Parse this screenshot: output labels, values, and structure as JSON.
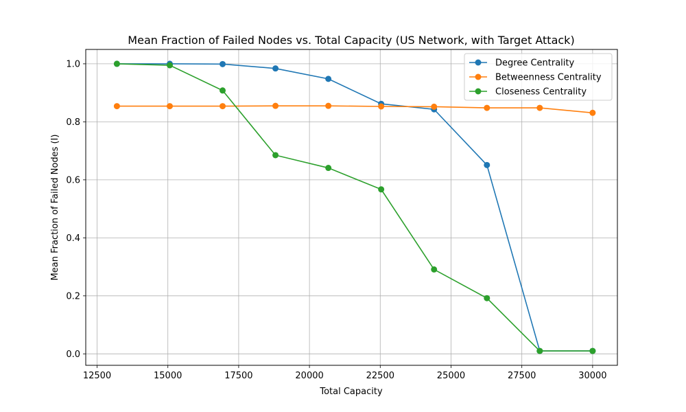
{
  "chart_data": {
    "type": "line",
    "title": "Mean Fraction of Failed Nodes vs. Total Capacity (US Network, with Target Attack)",
    "xlabel": "Total Capacity",
    "ylabel": "Mean Fraction of Failed Nodes (I)",
    "x": [
      13200,
      15067,
      16933,
      18800,
      20667,
      22533,
      24400,
      26267,
      28133,
      30000
    ],
    "xlim": [
      12500,
      30000
    ],
    "ylim": [
      0.0,
      1.0
    ],
    "x_ticks": [
      12500,
      15000,
      17500,
      20000,
      22500,
      25000,
      27500,
      30000
    ],
    "x_tick_labels": [
      "12500",
      "15000",
      "17500",
      "20000",
      "22500",
      "25000",
      "27500",
      "30000"
    ],
    "y_ticks": [
      0.0,
      0.2,
      0.4,
      0.6,
      0.8,
      1.0
    ],
    "y_tick_labels": [
      "0.0",
      "0.2",
      "0.4",
      "0.6",
      "0.8",
      "1.0"
    ],
    "grid": true,
    "legend_position": "top-right",
    "series": [
      {
        "name": "Degree Centrality",
        "color": "#1f77b4",
        "values": [
          1.0,
          1.0,
          0.999,
          0.984,
          0.948,
          0.862,
          0.843,
          0.651,
          0.01,
          0.01
        ]
      },
      {
        "name": "Betweenness Centrality",
        "color": "#ff7f0e",
        "values": [
          0.854,
          0.854,
          0.854,
          0.855,
          0.855,
          0.853,
          0.852,
          0.848,
          0.848,
          0.831
        ]
      },
      {
        "name": "Closeness Centrality",
        "color": "#2ca02c",
        "values": [
          1.0,
          0.995,
          0.908,
          0.685,
          0.641,
          0.567,
          0.291,
          0.192,
          0.01,
          0.01
        ]
      }
    ]
  }
}
